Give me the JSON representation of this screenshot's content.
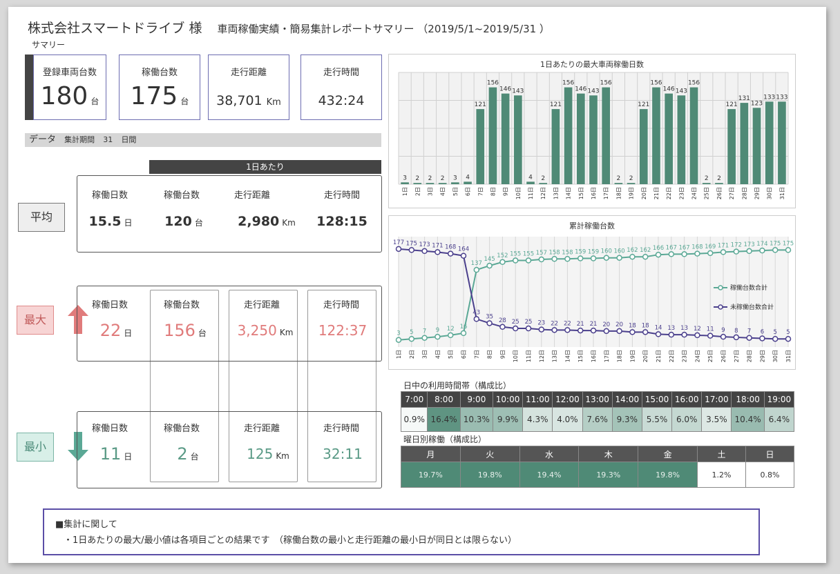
{
  "header": {
    "company": "株式会社スマートドライブ 様",
    "report_title": "車両稼働実績・簡易集計レポートサマリー （2019/5/1~2019/5/31 ）",
    "summary_label": "サマリー"
  },
  "kpis": {
    "registered": {
      "label": "登録車両台数",
      "value": "180",
      "unit": "台"
    },
    "operating": {
      "label": "稼働台数",
      "value": "175",
      "unit": "台"
    },
    "distance": {
      "label": "走行距離",
      "value": "38,701",
      "unit": "Km"
    },
    "time": {
      "label": "走行時間",
      "value": "432:24"
    }
  },
  "data_bar": {
    "label": "データ",
    "period_label": "集計期間",
    "days": "31",
    "days_unit": "日間"
  },
  "per_day_label": "1日あたり",
  "columns": {
    "days": "稼働日数",
    "vehicles": "稼働台数",
    "distance": "走行距離",
    "time": "走行時間"
  },
  "avg": {
    "tag": "平均",
    "days": "15.5",
    "days_unit": "日",
    "vehicles": "120",
    "vehicles_unit": "台",
    "distance": "2,980",
    "distance_unit": "Km",
    "time": "128:15"
  },
  "max": {
    "tag": "最大",
    "days": "22",
    "days_unit": "日",
    "vehicles": "156",
    "vehicles_unit": "台",
    "distance": "3,250",
    "distance_unit": "Km",
    "time": "122:37"
  },
  "min": {
    "tag": "最小",
    "days": "11",
    "days_unit": "日",
    "vehicles": "2",
    "vehicles_unit": "台",
    "distance": "125",
    "distance_unit": "Km",
    "time": "32:11"
  },
  "colors": {
    "accent": "#5b9080",
    "purple": "#4a3f8c",
    "teal": "#5aa895",
    "max_red": "#e07b7b",
    "min_green": "#5a9a86"
  },
  "chart_data": [
    {
      "type": "bar",
      "title": "1日あたりの最大車両稼働日数",
      "categories": [
        "1日",
        "2日",
        "3日",
        "4日",
        "5日",
        "6日",
        "7日",
        "8日",
        "9日",
        "10日",
        "11日",
        "12日",
        "13日",
        "14日",
        "15日",
        "16日",
        "17日",
        "18日",
        "19日",
        "20日",
        "21日",
        "22日",
        "23日",
        "24日",
        "25日",
        "26日",
        "27日",
        "28日",
        "29日",
        "30日",
        "31日"
      ],
      "values": [
        3,
        2,
        2,
        2,
        3,
        4,
        121,
        156,
        146,
        143,
        4,
        2,
        121,
        156,
        146,
        143,
        156,
        2,
        2,
        121,
        156,
        146,
        143,
        156,
        2,
        2,
        121,
        131,
        123,
        133,
        133
      ],
      "ylim": [
        0,
        180
      ],
      "grid": true
    },
    {
      "type": "line",
      "title": "累計稼働台数",
      "categories": [
        "1日",
        "2日",
        "3日",
        "4日",
        "5日",
        "6日",
        "7日",
        "8日",
        "9日",
        "10日",
        "11日",
        "12日",
        "13日",
        "14日",
        "15日",
        "16日",
        "17日",
        "18日",
        "19日",
        "20日",
        "21日",
        "22日",
        "23日",
        "24日",
        "25日",
        "26日",
        "27日",
        "28日",
        "29日",
        "30日",
        "31日"
      ],
      "series": [
        {
          "name": "稼働台数合計",
          "values": [
            3,
            5,
            7,
            9,
            12,
            16,
            137,
            145,
            152,
            155,
            155,
            157,
            158,
            158,
            159,
            159,
            160,
            160,
            162,
            162,
            166,
            167,
            167,
            168,
            169,
            171,
            172,
            173,
            174,
            175,
            175
          ]
        },
        {
          "name": "未稼働台数合計",
          "values": [
            177,
            175,
            173,
            171,
            168,
            164,
            43,
            35,
            28,
            25,
            25,
            23,
            22,
            22,
            21,
            21,
            20,
            20,
            18,
            18,
            14,
            13,
            13,
            12,
            11,
            9,
            8,
            7,
            6,
            5,
            5
          ]
        }
      ],
      "ylim": [
        0,
        190
      ],
      "legend": "right",
      "grid": true
    }
  ],
  "hourly": {
    "title": "日中の利用時間帯（構成比）",
    "hours": [
      "7:00",
      "8:00",
      "9:00",
      "10:00",
      "11:00",
      "12:00",
      "13:00",
      "14:00",
      "15:00",
      "16:00",
      "17:00",
      "18:00",
      "19:00"
    ],
    "values": [
      "0.9%",
      "16.4%",
      "10.3%",
      "9.9%",
      "4.3%",
      "4.0%",
      "7.6%",
      "9.3%",
      "5.5%",
      "6.0%",
      "3.5%",
      "10.4%",
      "6.4%"
    ],
    "shades": [
      0.9,
      16.4,
      10.3,
      9.9,
      4.3,
      4.0,
      7.6,
      9.3,
      5.5,
      6.0,
      3.5,
      10.4,
      6.4
    ]
  },
  "weekday": {
    "title": "曜日別稼働（構成比）",
    "days": [
      "月",
      "火",
      "水",
      "木",
      "金",
      "土",
      "日"
    ],
    "values": [
      "19.7%",
      "19.8%",
      "19.4%",
      "19.3%",
      "19.8%",
      "1.2%",
      "0.8%"
    ],
    "shades": [
      19.7,
      19.8,
      19.4,
      19.3,
      19.8,
      1.2,
      0.8
    ]
  },
  "notes": {
    "heading": "■集計に関して",
    "line1": "・1日あたりの最大/最小値は各項目ごとの結果です　（稼働台数の最小と走行距離の最小日が同日とは限らない）"
  }
}
